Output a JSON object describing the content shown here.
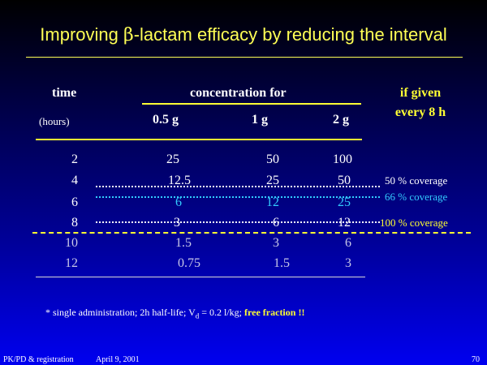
{
  "title_prefix": "Improving ",
  "title_beta": "β",
  "title_rest": "-lactam efficacy by reducing the interval",
  "headers": {
    "time": "time",
    "hours": "(hours)",
    "concentration_for": "concentration for",
    "doses": [
      "0.5 g",
      "1 g",
      "2 g"
    ],
    "if_given_line1": "if given",
    "if_given_line2": "every 8 h"
  },
  "rows": [
    {
      "time": "2",
      "values": [
        "25",
        "50",
        "100"
      ]
    },
    {
      "time": "4",
      "values": [
        "12.5",
        "25",
        "50"
      ]
    },
    {
      "time": "6",
      "values": [
        "6",
        "12",
        "25"
      ]
    },
    {
      "time": "8",
      "values": [
        "3",
        "6",
        "12"
      ]
    },
    {
      "time": "10",
      "values": [
        "1.5",
        "3",
        "6"
      ]
    },
    {
      "time": "12",
      "values": [
        "0.75",
        "1.5",
        "3"
      ]
    }
  ],
  "coverage": {
    "row4": "50 % coverage",
    "row6": "66 % coverage",
    "row8": "100 % coverage"
  },
  "footnote": {
    "part1": "* single administration; 2h half-life; V",
    "sub": "d",
    "part2": " = 0.2 l/kg; ",
    "bold": "free fraction !!"
  },
  "slide_footer": {
    "left": "PK/PD & registration",
    "date": "April 9, 2001",
    "page": "70"
  },
  "colors": {
    "title": "#ffff55",
    "accent_yellow": "#ffff33",
    "accent_blue": "#33ccff",
    "text": "#ffffff"
  }
}
